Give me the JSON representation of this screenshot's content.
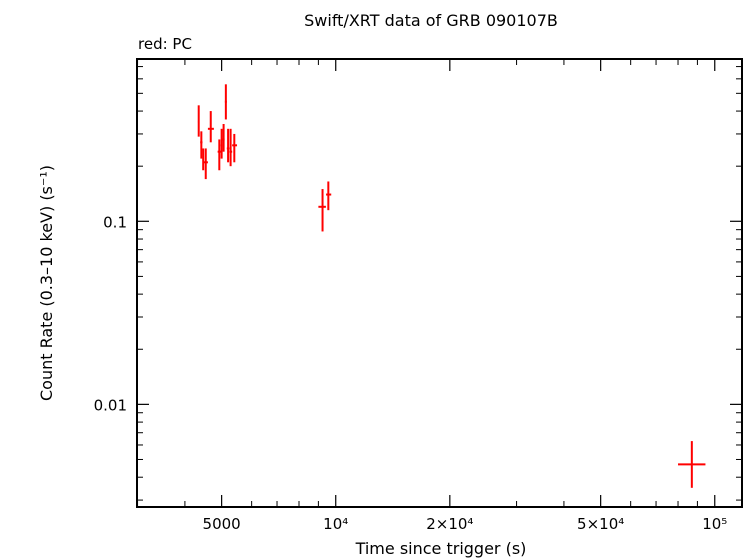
{
  "chart_data": {
    "type": "scatter",
    "title": "Swift/XRT data of GRB 090107B",
    "subtitle": "red: PC",
    "xlabel": "Time since trigger (s)",
    "ylabel": "Count Rate (0.3–10 keV) (s⁻¹)",
    "xscale": "log",
    "yscale": "log",
    "xlim": [
      2990,
      118000
    ],
    "ylim": [
      0.00275,
      0.77
    ],
    "grid": false,
    "colors": {
      "series": "#ff0000",
      "axes": "#000000"
    },
    "x_ticks": [
      {
        "value": 5000,
        "label": "5000"
      },
      {
        "value": 10000,
        "label": "10⁴"
      },
      {
        "value": 20000,
        "label": "2×10⁴"
      },
      {
        "value": 50000,
        "label": "5×10⁴"
      },
      {
        "value": 100000,
        "label": "10⁵"
      }
    ],
    "y_ticks": [
      {
        "value": 0.1,
        "label": "0.1"
      },
      {
        "value": 0.01,
        "label": "0.01"
      }
    ],
    "series": [
      {
        "points": [
          {
            "x": 4350,
            "xlo": 4330,
            "xhi": 4370,
            "y": 0.35,
            "ylo": 0.29,
            "yhi": 0.43
          },
          {
            "x": 4420,
            "xlo": 4390,
            "xhi": 4450,
            "y": 0.27,
            "ylo": 0.22,
            "yhi": 0.31
          },
          {
            "x": 4470,
            "xlo": 4450,
            "xhi": 4490,
            "y": 0.22,
            "ylo": 0.19,
            "yhi": 0.25
          },
          {
            "x": 4540,
            "xlo": 4490,
            "xhi": 4600,
            "y": 0.21,
            "ylo": 0.17,
            "yhi": 0.25
          },
          {
            "x": 4680,
            "xlo": 4600,
            "xhi": 4770,
            "y": 0.32,
            "ylo": 0.27,
            "yhi": 0.4
          },
          {
            "x": 4930,
            "xlo": 4880,
            "xhi": 4980,
            "y": 0.24,
            "ylo": 0.19,
            "yhi": 0.28
          },
          {
            "x": 5000,
            "xlo": 4970,
            "xhi": 5030,
            "y": 0.26,
            "ylo": 0.22,
            "yhi": 0.32
          },
          {
            "x": 5060,
            "xlo": 5030,
            "xhi": 5090,
            "y": 0.28,
            "ylo": 0.24,
            "yhi": 0.34
          },
          {
            "x": 5130,
            "xlo": 5100,
            "xhi": 5160,
            "y": 0.45,
            "ylo": 0.36,
            "yhi": 0.56
          },
          {
            "x": 5200,
            "xlo": 5160,
            "xhi": 5240,
            "y": 0.25,
            "ylo": 0.21,
            "yhi": 0.32
          },
          {
            "x": 5280,
            "xlo": 5240,
            "xhi": 5330,
            "y": 0.24,
            "ylo": 0.2,
            "yhi": 0.32
          },
          {
            "x": 5400,
            "xlo": 5330,
            "xhi": 5490,
            "y": 0.26,
            "ylo": 0.21,
            "yhi": 0.3
          },
          {
            "x": 9230,
            "xlo": 9000,
            "xhi": 9420,
            "y": 0.12,
            "ylo": 0.088,
            "yhi": 0.15
          },
          {
            "x": 9560,
            "xlo": 9430,
            "xhi": 9730,
            "y": 0.14,
            "ylo": 0.115,
            "yhi": 0.165
          },
          {
            "x": 87000,
            "xlo": 80000,
            "xhi": 94500,
            "y": 0.0047,
            "ylo": 0.0035,
            "yhi": 0.0063
          }
        ]
      }
    ]
  }
}
